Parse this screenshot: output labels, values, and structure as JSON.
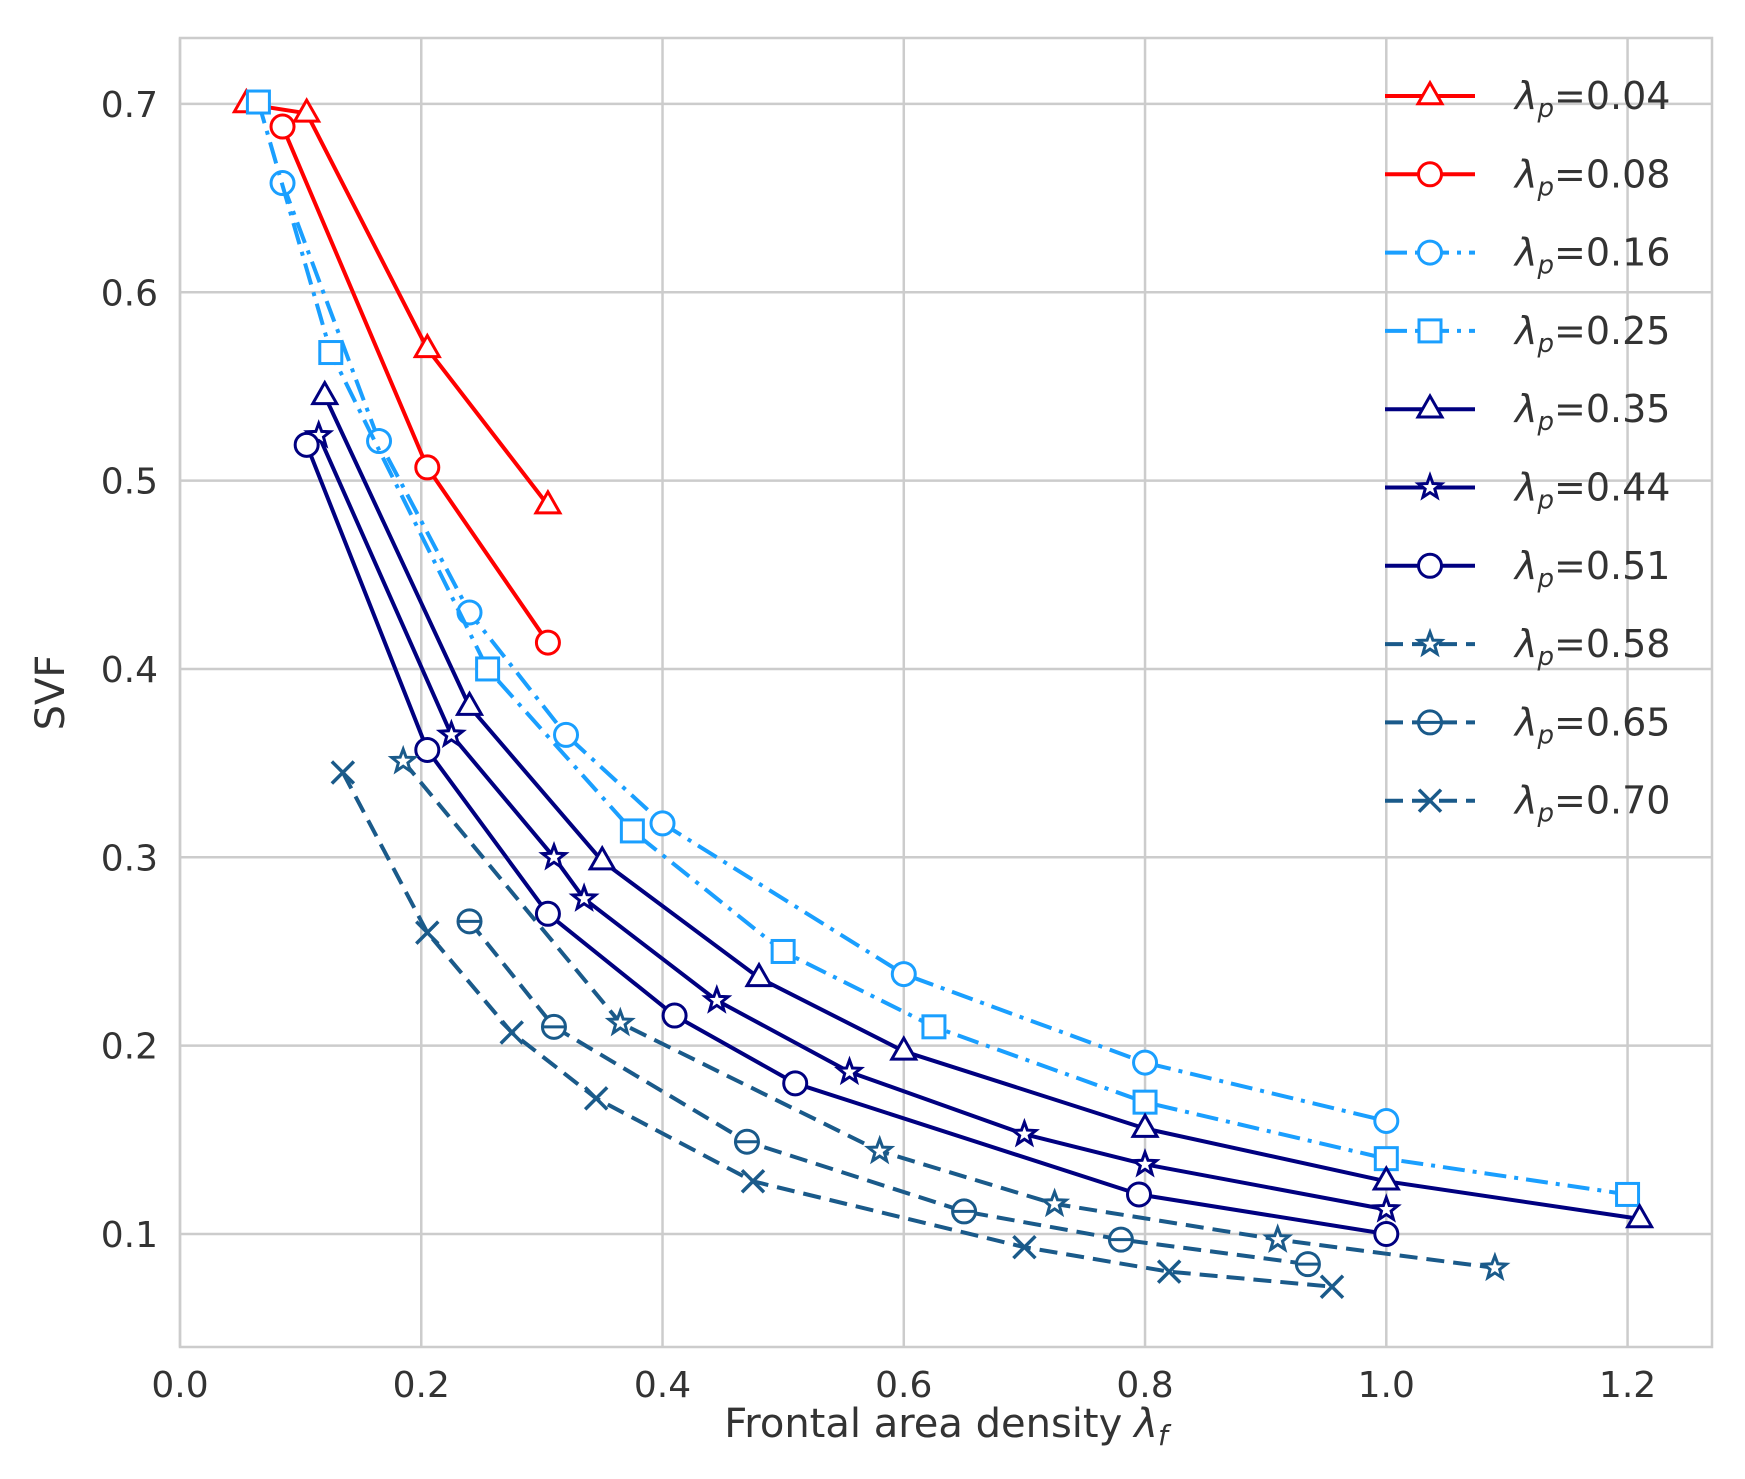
{
  "chart_data": {
    "type": "line",
    "title": "",
    "xlabel": "Frontal area density",
    "xlabel_symbol": "λ",
    "xlabel_subscript": "f",
    "ylabel": "SVF",
    "xlim": [
      0.0,
      1.27
    ],
    "ylim": [
      0.04,
      0.735
    ],
    "xticks": [
      0.0,
      0.2,
      0.4,
      0.6,
      0.8,
      1.0,
      1.2
    ],
    "xtick_labels": [
      "0.0",
      "0.2",
      "0.4",
      "0.6",
      "0.8",
      "1.0",
      "1.2"
    ],
    "yticks": [
      0.1,
      0.2,
      0.3,
      0.4,
      0.5,
      0.6,
      0.7
    ],
    "ytick_labels": [
      "0.1",
      "0.2",
      "0.3",
      "0.4",
      "0.5",
      "0.6",
      "0.7"
    ],
    "grid": true,
    "legend_position": "top-right",
    "series": [
      {
        "name": "λp=0.04",
        "symbol": "λ",
        "sub": "p",
        "value": "=0.04",
        "color": "#ff0000",
        "linestyle": "solid",
        "marker": "triangle",
        "x": [
          0.055,
          0.105,
          0.205,
          0.305
        ],
        "y": [
          0.7,
          0.695,
          0.57,
          0.487
        ]
      },
      {
        "name": "λp=0.08",
        "symbol": "λ",
        "sub": "p",
        "value": "=0.08",
        "color": "#ff0000",
        "linestyle": "solid",
        "marker": "circle",
        "x": [
          0.085,
          0.205,
          0.305
        ],
        "y": [
          0.688,
          0.507,
          0.414
        ]
      },
      {
        "name": "λp=0.16",
        "symbol": "λ",
        "sub": "p",
        "value": "=0.16",
        "color": "#1a9fff",
        "linestyle": "dashdot",
        "marker": "circle",
        "x": [
          0.085,
          0.165,
          0.24,
          0.32,
          0.4,
          0.6,
          0.8,
          1.0
        ],
        "y": [
          0.658,
          0.521,
          0.43,
          0.365,
          0.318,
          0.238,
          0.191,
          0.16
        ]
      },
      {
        "name": "λp=0.25",
        "symbol": "λ",
        "sub": "p",
        "value": "=0.25",
        "color": "#1a9fff",
        "linestyle": "dashdot",
        "marker": "square",
        "x": [
          0.065,
          0.125,
          0.255,
          0.375,
          0.5,
          0.625,
          0.8,
          1.0,
          1.2
        ],
        "y": [
          0.701,
          0.568,
          0.4,
          0.314,
          0.25,
          0.21,
          0.17,
          0.14,
          0.121
        ]
      },
      {
        "name": "λp=0.35",
        "symbol": "λ",
        "sub": "p",
        "value": "=0.35",
        "color": "#000080",
        "linestyle": "solid",
        "marker": "triangle",
        "x": [
          0.12,
          0.24,
          0.35,
          0.48,
          0.6,
          0.8,
          1.0,
          1.21
        ],
        "y": [
          0.545,
          0.38,
          0.298,
          0.236,
          0.197,
          0.156,
          0.128,
          0.108
        ]
      },
      {
        "name": "λp=0.44",
        "symbol": "λ",
        "sub": "p",
        "value": "=0.44",
        "color": "#000080",
        "linestyle": "solid",
        "marker": "star",
        "x": [
          0.115,
          0.225,
          0.31,
          0.335,
          0.445,
          0.555,
          0.7,
          0.8,
          1.0
        ],
        "y": [
          0.524,
          0.365,
          0.3,
          0.278,
          0.224,
          0.186,
          0.153,
          0.137,
          0.113
        ]
      },
      {
        "name": "λp=0.51",
        "symbol": "λ",
        "sub": "p",
        "value": "=0.51",
        "color": "#000080",
        "linestyle": "solid",
        "marker": "circle",
        "x": [
          0.105,
          0.205,
          0.305,
          0.41,
          0.51,
          0.795,
          1.0
        ],
        "y": [
          0.519,
          0.357,
          0.27,
          0.216,
          0.18,
          0.121,
          0.1
        ]
      },
      {
        "name": "λp=0.58",
        "symbol": "λ",
        "sub": "p",
        "value": "=0.58",
        "color": "#1a5a8a",
        "linestyle": "dashed",
        "marker": "star",
        "x": [
          0.185,
          0.365,
          0.58,
          0.725,
          0.91,
          1.09
        ],
        "y": [
          0.351,
          0.212,
          0.144,
          0.116,
          0.097,
          0.082
        ]
      },
      {
        "name": "λp=0.65",
        "symbol": "λ",
        "sub": "p",
        "value": "=0.65",
        "color": "#1a5a8a",
        "linestyle": "dashed",
        "marker": "circle-line",
        "x": [
          0.24,
          0.31,
          0.47,
          0.65,
          0.78,
          0.935
        ],
        "y": [
          0.266,
          0.21,
          0.149,
          0.112,
          0.097,
          0.084
        ]
      },
      {
        "name": "λp=0.70",
        "symbol": "λ",
        "sub": "p",
        "value": "=0.70",
        "color": "#1a5a8a",
        "linestyle": "dashed",
        "marker": "x",
        "x": [
          0.135,
          0.205,
          0.275,
          0.345,
          0.475,
          0.7,
          0.82,
          0.955
        ],
        "y": [
          0.345,
          0.26,
          0.207,
          0.172,
          0.128,
          0.093,
          0.08,
          0.072
        ]
      }
    ]
  }
}
